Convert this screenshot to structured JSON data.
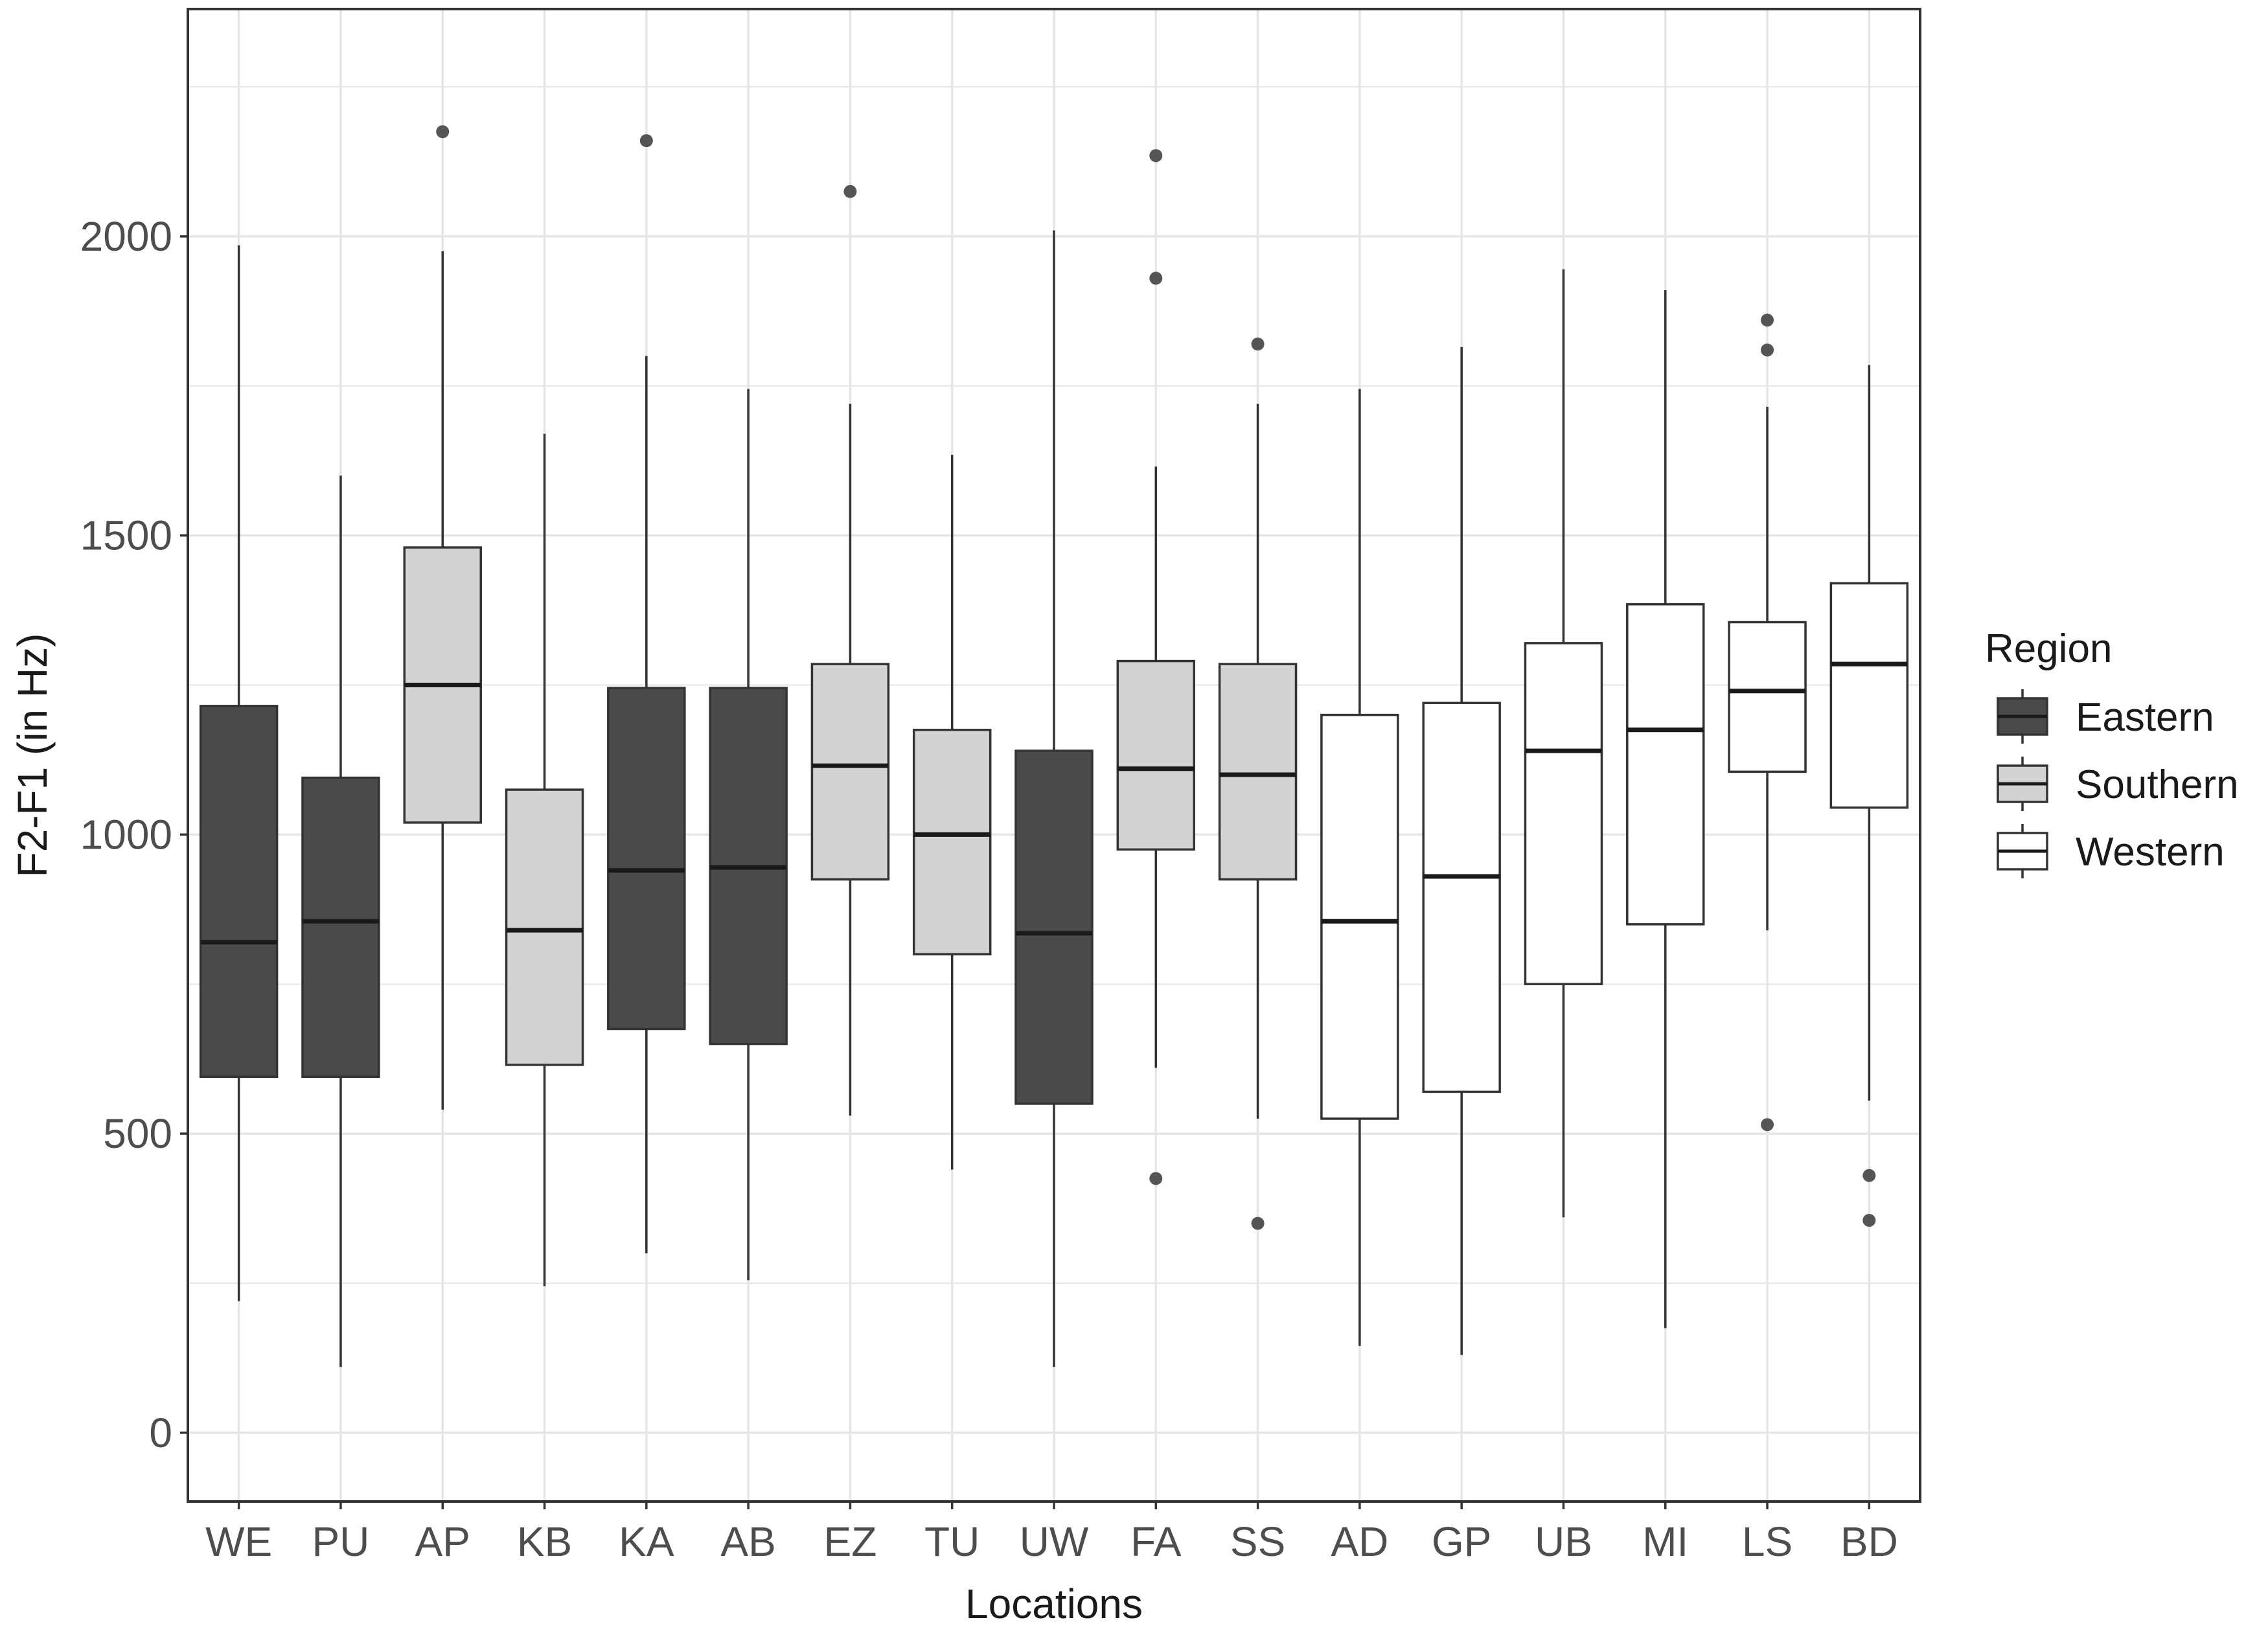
{
  "chart_data": {
    "type": "boxplot",
    "title": "",
    "xlabel": "Locations",
    "ylabel": "F2-F1 (in Hz)",
    "ylim": [
      -115,
      2380
    ],
    "yticks": [
      0,
      500,
      1000,
      1500,
      2000
    ],
    "ytick_labels": [
      "0",
      "500",
      "1000",
      "1500",
      "2000"
    ],
    "grid": true,
    "legend": {
      "title": "Region",
      "position": "right",
      "entries": [
        {
          "label": "Eastern",
          "color": "#4a4a4a"
        },
        {
          "label": "Southern",
          "color": "#d3d3d3"
        },
        {
          "label": "Western",
          "color": "#ffffff"
        }
      ]
    },
    "colors": {
      "Eastern": "#4a4a4a",
      "Southern": "#d3d3d3",
      "Western": "#ffffff",
      "outline": "#333333",
      "outlier": "#555555",
      "grid": "#e6e6e6"
    },
    "categories": [
      "WE",
      "PU",
      "AP",
      "KB",
      "KA",
      "AB",
      "EZ",
      "TU",
      "UW",
      "FA",
      "SS",
      "AD",
      "GP",
      "UB",
      "MI",
      "LS",
      "BD"
    ],
    "boxes": [
      {
        "name": "WE",
        "region": "Eastern",
        "whisker_low": 220,
        "q1": 595,
        "median": 820,
        "q3": 1215,
        "whisker_high": 1985,
        "outliers": []
      },
      {
        "name": "PU",
        "region": "Eastern",
        "whisker_low": 110,
        "q1": 595,
        "median": 855,
        "q3": 1095,
        "whisker_high": 1600,
        "outliers": []
      },
      {
        "name": "AP",
        "region": "Southern",
        "whisker_low": 540,
        "q1": 1020,
        "median": 1250,
        "q3": 1480,
        "whisker_high": 1975,
        "outliers": [
          2175
        ]
      },
      {
        "name": "KB",
        "region": "Southern",
        "whisker_low": 245,
        "q1": 615,
        "median": 840,
        "q3": 1075,
        "whisker_high": 1670,
        "outliers": []
      },
      {
        "name": "KA",
        "region": "Eastern",
        "whisker_low": 300,
        "q1": 675,
        "median": 940,
        "q3": 1245,
        "whisker_high": 1800,
        "outliers": [
          2160
        ]
      },
      {
        "name": "AB",
        "region": "Eastern",
        "whisker_low": 255,
        "q1": 650,
        "median": 945,
        "q3": 1245,
        "whisker_high": 1745,
        "outliers": []
      },
      {
        "name": "EZ",
        "region": "Southern",
        "whisker_low": 530,
        "q1": 925,
        "median": 1115,
        "q3": 1285,
        "whisker_high": 1720,
        "outliers": [
          2075
        ]
      },
      {
        "name": "TU",
        "region": "Southern",
        "whisker_low": 440,
        "q1": 800,
        "median": 1000,
        "q3": 1175,
        "whisker_high": 1635,
        "outliers": []
      },
      {
        "name": "UW",
        "region": "Eastern",
        "whisker_low": 110,
        "q1": 550,
        "median": 835,
        "q3": 1140,
        "whisker_high": 2010,
        "outliers": []
      },
      {
        "name": "FA",
        "region": "Southern",
        "whisker_low": 610,
        "q1": 975,
        "median": 1110,
        "q3": 1290,
        "whisker_high": 1615,
        "outliers": [
          2135,
          1930,
          425
        ]
      },
      {
        "name": "SS",
        "region": "Southern",
        "whisker_low": 525,
        "q1": 925,
        "median": 1100,
        "q3": 1285,
        "whisker_high": 1720,
        "outliers": [
          1820,
          350
        ]
      },
      {
        "name": "AD",
        "region": "Western",
        "whisker_low": 145,
        "q1": 525,
        "median": 855,
        "q3": 1200,
        "whisker_high": 1745,
        "outliers": []
      },
      {
        "name": "GP",
        "region": "Western",
        "whisker_low": 130,
        "q1": 570,
        "median": 930,
        "q3": 1220,
        "whisker_high": 1815,
        "outliers": []
      },
      {
        "name": "UB",
        "region": "Western",
        "whisker_low": 360,
        "q1": 750,
        "median": 1140,
        "q3": 1320,
        "whisker_high": 1945,
        "outliers": []
      },
      {
        "name": "MI",
        "region": "Western",
        "whisker_low": 175,
        "q1": 850,
        "median": 1175,
        "q3": 1385,
        "whisker_high": 1910,
        "outliers": []
      },
      {
        "name": "LS",
        "region": "Western",
        "whisker_low": 840,
        "q1": 1105,
        "median": 1240,
        "q3": 1355,
        "whisker_high": 1715,
        "outliers": [
          1860,
          1810,
          515
        ]
      },
      {
        "name": "BD",
        "region": "Western",
        "whisker_low": 555,
        "q1": 1045,
        "median": 1285,
        "q3": 1420,
        "whisker_high": 1785,
        "outliers": [
          430,
          355
        ]
      }
    ]
  }
}
